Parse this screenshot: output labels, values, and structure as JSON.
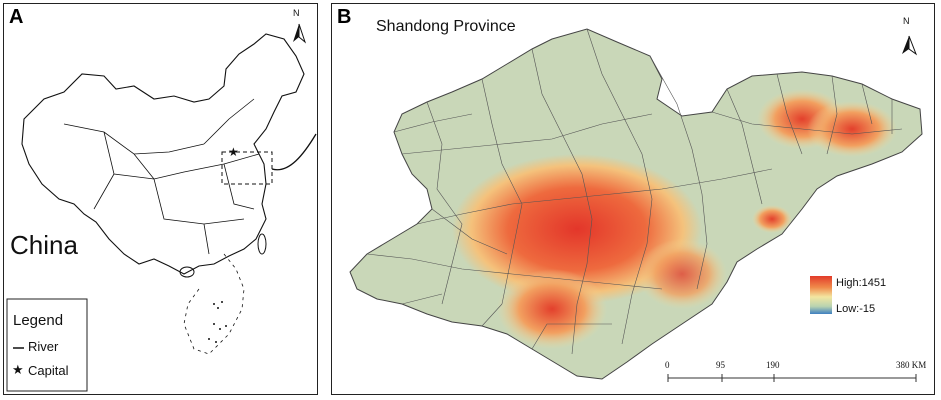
{
  "panel_a": {
    "label": "A",
    "north_label": "N",
    "country_label": "China",
    "legend": {
      "title": "Legend",
      "items": [
        {
          "symbol": "line",
          "label": "River"
        },
        {
          "symbol": "star",
          "label": "Capital"
        }
      ]
    }
  },
  "panel_b": {
    "label": "B",
    "title": "Shandong Province",
    "north_label": "N",
    "elevation_legend": {
      "high_label": "High:1451",
      "low_label": "Low:-15",
      "colors": [
        "#e23b2a",
        "#f08a4b",
        "#f3e6a0",
        "#b9d3b0",
        "#3f7fc0"
      ]
    },
    "scale_bar": {
      "ticks": [
        "0",
        "95",
        "190",
        "380 KM"
      ]
    }
  },
  "colors": {
    "lowland": "#c9d7b8",
    "highland": "#e8402c",
    "midland": "#f2c784",
    "border": "#555555"
  }
}
